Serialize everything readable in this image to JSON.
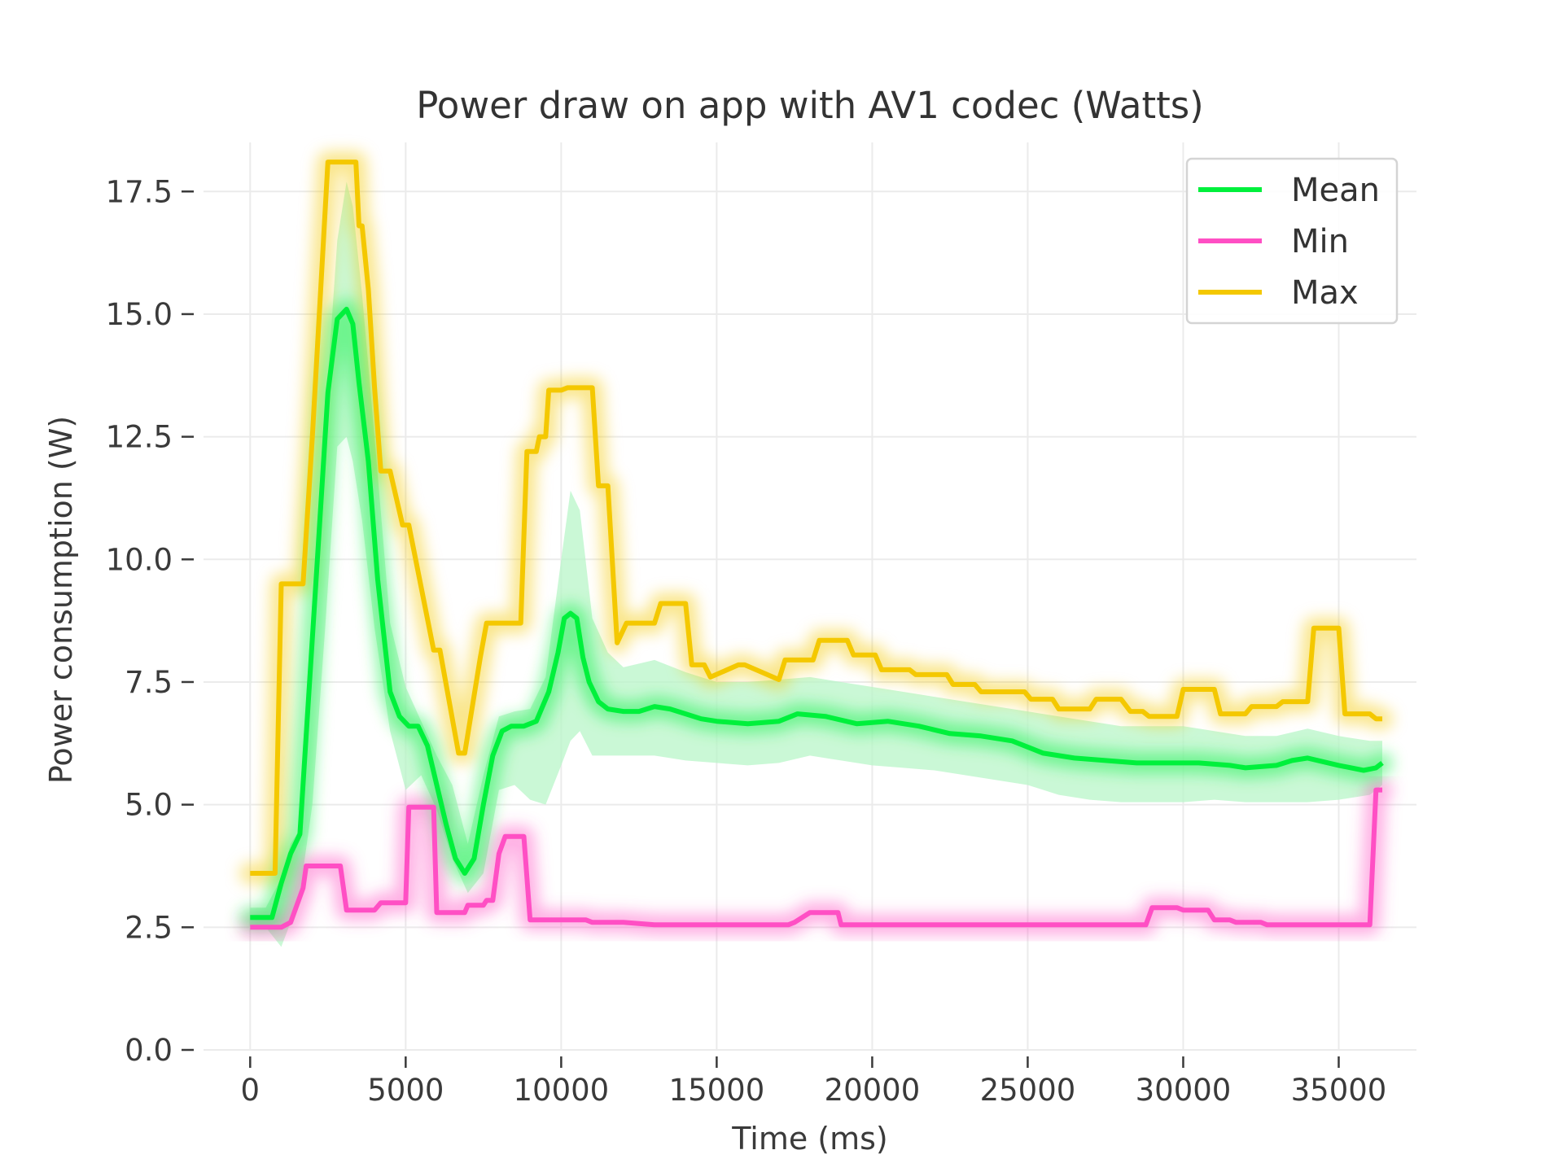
{
  "chart_data": {
    "type": "line",
    "title": "Power draw on app with AV1 codec (Watts)",
    "xlabel": "Time (ms)",
    "ylabel": "Power consumption (W)",
    "xlim": [
      -1500,
      37500
    ],
    "ylim": [
      0,
      18.5
    ],
    "xticks": [
      0,
      5000,
      10000,
      15000,
      20000,
      25000,
      30000,
      35000
    ],
    "xtick_labels": [
      "0",
      "5000",
      "10000",
      "15000",
      "20000",
      "25000",
      "30000",
      "35000"
    ],
    "yticks": [
      0,
      2.5,
      5,
      7.5,
      10,
      12.5,
      15,
      17.5
    ],
    "ytick_labels": [
      "0.0",
      "2.5",
      "5.0",
      "7.5",
      "10.0",
      "12.5",
      "15.0",
      "17.5"
    ],
    "grid": true,
    "legend": {
      "position": "top-right",
      "entries": [
        "Mean",
        "Min",
        "Max"
      ]
    },
    "series": [
      {
        "name": "Mean",
        "color": "#00f03c",
        "x": [
          0,
          700,
          1000,
          1300,
          1600,
          1900,
          2200,
          2500,
          2800,
          3100,
          3300,
          3500,
          3800,
          4100,
          4500,
          4800,
          5100,
          5400,
          5700,
          6000,
          6300,
          6600,
          6900,
          7200,
          7500,
          7800,
          8100,
          8400,
          8800,
          9200,
          9600,
          9900,
          10100,
          10300,
          10500,
          10700,
          10900,
          11200,
          11500,
          12000,
          12500,
          13000,
          13500,
          14000,
          14500,
          15000,
          16000,
          17000,
          17600,
          18500,
          19500,
          20500,
          21500,
          22500,
          23500,
          24500,
          25500,
          26500,
          27500,
          28500,
          29500,
          30500,
          31500,
          32000,
          33000,
          33500,
          34000,
          35000,
          35800,
          36200,
          36400
        ],
        "values": [
          2.7,
          2.7,
          3.4,
          4.0,
          4.4,
          7.4,
          10.4,
          13.4,
          14.9,
          15.1,
          14.8,
          13.6,
          12.0,
          9.6,
          7.3,
          6.8,
          6.6,
          6.6,
          6.2,
          5.4,
          4.6,
          3.9,
          3.6,
          3.9,
          5.0,
          6.0,
          6.5,
          6.6,
          6.6,
          6.7,
          7.3,
          8.1,
          8.8,
          8.9,
          8.8,
          8.0,
          7.5,
          7.1,
          6.95,
          6.9,
          6.9,
          7.0,
          6.95,
          6.85,
          6.75,
          6.7,
          6.65,
          6.7,
          6.85,
          6.8,
          6.65,
          6.7,
          6.6,
          6.45,
          6.4,
          6.3,
          6.05,
          5.95,
          5.9,
          5.85,
          5.85,
          5.85,
          5.8,
          5.75,
          5.8,
          5.9,
          5.95,
          5.8,
          5.7,
          5.75,
          5.85
        ]
      },
      {
        "name": "Min",
        "color": "#ff4fc4",
        "x": [
          0,
          1000,
          1300,
          1700,
          1800,
          2000,
          2900,
          3000,
          3100,
          4000,
          4200,
          5000,
          5100,
          5900,
          6000,
          6900,
          7000,
          7500,
          7600,
          7800,
          8000,
          8200,
          8800,
          9000,
          10800,
          11000,
          12000,
          13000,
          14000,
          17300,
          17500,
          18000,
          18900,
          19000,
          20000,
          28800,
          29000,
          29800,
          30000,
          30800,
          31000,
          31500,
          31700,
          32500,
          32700,
          36000,
          36200,
          36400
        ],
        "values": [
          2.5,
          2.5,
          2.6,
          3.3,
          3.75,
          3.75,
          3.75,
          3.3,
          2.85,
          2.85,
          3.0,
          3.0,
          4.95,
          4.95,
          2.8,
          2.8,
          2.95,
          2.95,
          3.05,
          3.05,
          4.0,
          4.35,
          4.35,
          2.65,
          2.65,
          2.6,
          2.6,
          2.55,
          2.55,
          2.55,
          2.6,
          2.8,
          2.8,
          2.55,
          2.55,
          2.55,
          2.9,
          2.9,
          2.85,
          2.85,
          2.65,
          2.65,
          2.6,
          2.6,
          2.55,
          2.55,
          5.3,
          5.3
        ]
      },
      {
        "name": "Max",
        "color": "#f4c800",
        "x": [
          0,
          800,
          1000,
          1700,
          1800,
          2000,
          2500,
          2600,
          3400,
          3500,
          3600,
          3800,
          4000,
          4200,
          4500,
          4900,
          5100,
          5900,
          6100,
          6700,
          6900,
          7400,
          7600,
          7900,
          8000,
          8700,
          8900,
          9200,
          9300,
          9500,
          9600,
          10000,
          10200,
          11000,
          11200,
          11500,
          11800,
          12100,
          13000,
          13200,
          14000,
          14200,
          14600,
          14800,
          15700,
          15900,
          17000,
          17200,
          18100,
          18300,
          19200,
          19400,
          20100,
          20300,
          21200,
          21400,
          22400,
          22600,
          23300,
          23500,
          24900,
          25100,
          25800,
          26000,
          27000,
          27200,
          28000,
          28300,
          28700,
          28900,
          29800,
          30000,
          31000,
          31200,
          32000,
          32200,
          33000,
          33200,
          34000,
          34200,
          35000,
          35200,
          36000,
          36200,
          36400
        ],
        "values": [
          3.6,
          3.6,
          9.5,
          9.5,
          10.5,
          12.5,
          18.1,
          18.1,
          18.1,
          16.8,
          16.8,
          15.5,
          13.5,
          11.8,
          11.8,
          10.7,
          10.7,
          8.15,
          8.15,
          6.05,
          6.05,
          8.0,
          8.7,
          8.7,
          8.7,
          8.7,
          12.2,
          12.2,
          12.5,
          12.5,
          13.45,
          13.45,
          13.5,
          13.5,
          11.5,
          11.5,
          8.3,
          8.7,
          8.7,
          9.1,
          9.1,
          7.85,
          7.85,
          7.6,
          7.85,
          7.85,
          7.55,
          7.95,
          7.95,
          8.35,
          8.35,
          8.05,
          8.05,
          7.75,
          7.75,
          7.65,
          7.65,
          7.45,
          7.45,
          7.3,
          7.3,
          7.15,
          7.15,
          6.95,
          6.95,
          7.15,
          7.15,
          6.9,
          6.9,
          6.8,
          6.8,
          7.35,
          7.35,
          6.85,
          6.85,
          7.0,
          7.0,
          7.1,
          7.1,
          8.6,
          8.6,
          6.85,
          6.85,
          6.75,
          6.75
        ]
      }
    ],
    "band": {
      "color": "#b8f5c8",
      "x": [
        0,
        500,
        1000,
        1300,
        1600,
        2000,
        2400,
        2800,
        3100,
        3300,
        3600,
        4000,
        4500,
        5000,
        5500,
        6000,
        6500,
        7000,
        7500,
        8000,
        8500,
        9000,
        9500,
        10000,
        10300,
        10600,
        11000,
        11500,
        12000,
        13000,
        14000,
        15000,
        16000,
        17000,
        18000,
        19000,
        20000,
        21000,
        22000,
        23000,
        24000,
        25000,
        26000,
        27000,
        28000,
        29000,
        30000,
        31000,
        32000,
        33000,
        34000,
        35000,
        36000,
        36400
      ],
      "lower": [
        2.5,
        2.5,
        2.1,
        2.6,
        3.2,
        5.0,
        8.5,
        12.3,
        12.5,
        12.0,
        10.8,
        8.6,
        6.5,
        5.3,
        5.6,
        4.9,
        3.9,
        3.2,
        3.6,
        5.3,
        5.4,
        5.1,
        5.0,
        5.8,
        6.3,
        6.5,
        6.0,
        6.0,
        6.0,
        6.0,
        5.9,
        5.85,
        5.8,
        5.85,
        6.0,
        5.9,
        5.8,
        5.75,
        5.7,
        5.6,
        5.5,
        5.4,
        5.2,
        5.1,
        5.05,
        5.05,
        5.05,
        5.1,
        5.05,
        5.05,
        5.05,
        5.1,
        5.2,
        5.4
      ],
      "upper": [
        2.9,
        2.9,
        3.5,
        4.2,
        4.5,
        8.7,
        12.8,
        16.5,
        17.7,
        17.2,
        15.4,
        12.5,
        8.7,
        7.4,
        6.7,
        6.0,
        5.4,
        4.2,
        5.6,
        6.8,
        6.9,
        6.95,
        7.6,
        10.0,
        11.4,
        11.0,
        8.8,
        8.1,
        7.8,
        7.95,
        7.7,
        7.5,
        7.5,
        7.55,
        7.6,
        7.5,
        7.4,
        7.3,
        7.2,
        7.1,
        7.0,
        6.9,
        6.8,
        6.7,
        6.6,
        6.6,
        6.6,
        6.5,
        6.4,
        6.4,
        6.55,
        6.4,
        6.3,
        6.3
      ]
    }
  }
}
